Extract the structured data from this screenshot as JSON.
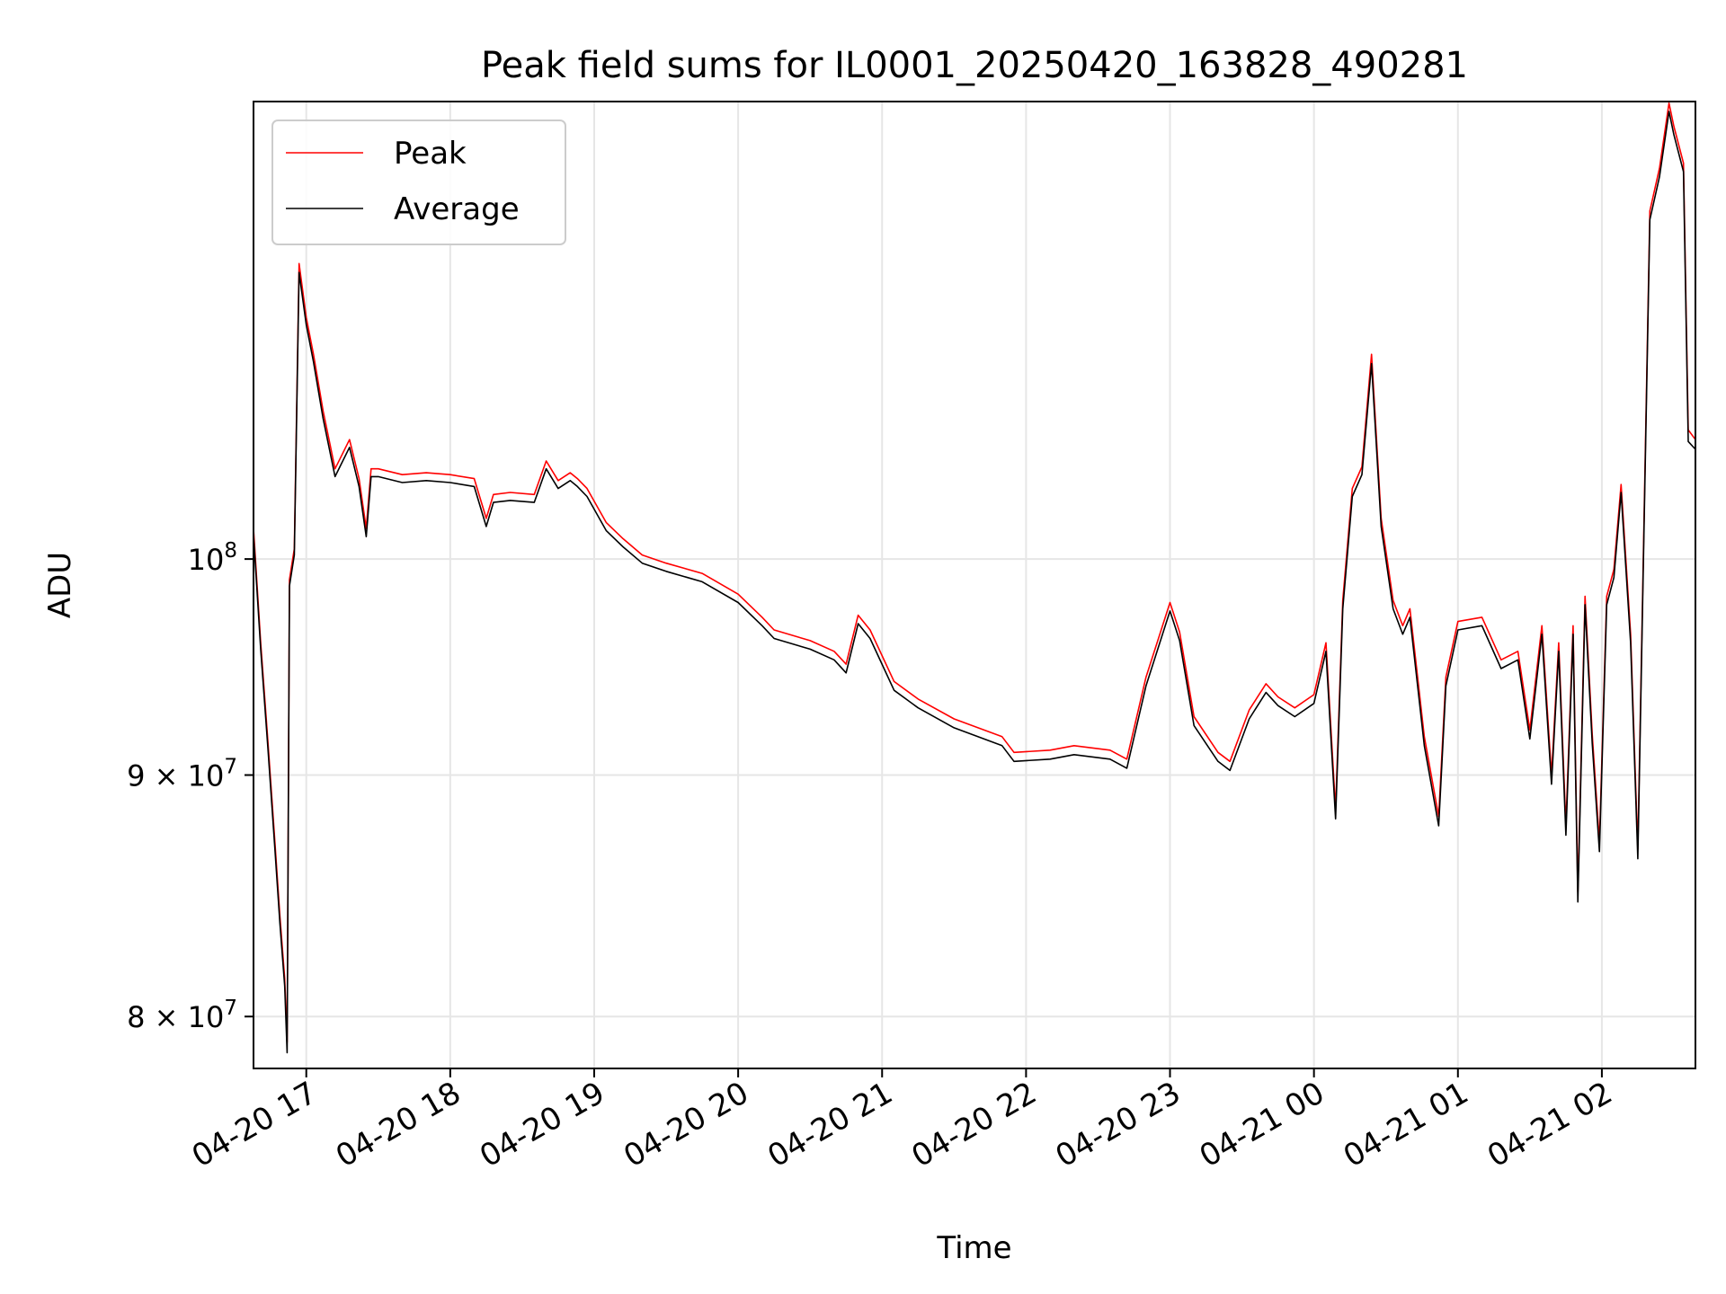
{
  "chart_data": {
    "type": "line",
    "title": "Peak field sums for IL0001_20250420_163828_490281",
    "xlabel": "Time",
    "ylabel": "ADU",
    "yscale": "log",
    "grid": true,
    "legend_placement": "top-left",
    "xlim": [
      "2025-04-20 16:38",
      "2025-04-21 02:39"
    ],
    "ylim": [
      78000000,
      125000000
    ],
    "x_ticks": [
      {
        "value": "2025-04-20 17:00",
        "label": "04-20 17"
      },
      {
        "value": "2025-04-20 18:00",
        "label": "04-20 18"
      },
      {
        "value": "2025-04-20 19:00",
        "label": "04-20 19"
      },
      {
        "value": "2025-04-20 20:00",
        "label": "04-20 20"
      },
      {
        "value": "2025-04-20 21:00",
        "label": "04-20 21"
      },
      {
        "value": "2025-04-20 22:00",
        "label": "04-20 22"
      },
      {
        "value": "2025-04-20 23:00",
        "label": "04-20 23"
      },
      {
        "value": "2025-04-21 00:00",
        "label": "04-21 00"
      },
      {
        "value": "2025-04-21 01:00",
        "label": "04-21 01"
      },
      {
        "value": "2025-04-21 02:00",
        "label": "04-21 02"
      }
    ],
    "y_ticks": [
      {
        "value": 80000000,
        "mantissa": "8",
        "base": "10",
        "exp": "7"
      },
      {
        "value": 90000000,
        "mantissa": "9",
        "base": "10",
        "exp": "7"
      },
      {
        "value": 100000000,
        "mantissa": "",
        "base": "10",
        "exp": "8"
      }
    ],
    "series": [
      {
        "name": "Peak",
        "color": "#ff0000",
        "x": [
          "2025-04-20 16:38",
          "2025-04-20 16:41",
          "2025-04-20 16:44",
          "2025-04-20 16:47",
          "2025-04-20 16:49",
          "2025-04-20 16:51",
          "2025-04-20 16:52",
          "2025-04-20 16:53",
          "2025-04-20 16:55",
          "2025-04-20 16:57",
          "2025-04-20 17:00",
          "2025-04-20 17:03",
          "2025-04-20 17:07",
          "2025-04-20 17:12",
          "2025-04-20 17:18",
          "2025-04-20 17:22",
          "2025-04-20 17:25",
          "2025-04-20 17:27",
          "2025-04-20 17:30",
          "2025-04-20 17:40",
          "2025-04-20 17:50",
          "2025-04-20 18:00",
          "2025-04-20 18:10",
          "2025-04-20 18:15",
          "2025-04-20 18:18",
          "2025-04-20 18:25",
          "2025-04-20 18:35",
          "2025-04-20 18:40",
          "2025-04-20 18:45",
          "2025-04-20 18:50",
          "2025-04-20 18:53",
          "2025-04-20 18:57",
          "2025-04-20 19:05",
          "2025-04-20 19:12",
          "2025-04-20 19:20",
          "2025-04-20 19:30",
          "2025-04-20 19:45",
          "2025-04-20 20:00",
          "2025-04-20 20:10",
          "2025-04-20 20:15",
          "2025-04-20 20:30",
          "2025-04-20 20:40",
          "2025-04-20 20:45",
          "2025-04-20 20:50",
          "2025-04-20 20:55",
          "2025-04-20 21:05",
          "2025-04-20 21:15",
          "2025-04-20 21:30",
          "2025-04-20 21:50",
          "2025-04-20 21:55",
          "2025-04-20 22:10",
          "2025-04-20 22:20",
          "2025-04-20 22:35",
          "2025-04-20 22:42",
          "2025-04-20 22:50",
          "2025-04-20 23:00",
          "2025-04-20 23:04",
          "2025-04-20 23:10",
          "2025-04-20 23:20",
          "2025-04-20 23:25",
          "2025-04-20 23:33",
          "2025-04-20 23:40",
          "2025-04-20 23:45",
          "2025-04-20 23:52",
          "2025-04-21 00:00",
          "2025-04-21 00:05",
          "2025-04-21 00:09",
          "2025-04-21 00:12",
          "2025-04-21 00:16",
          "2025-04-21 00:20",
          "2025-04-21 00:24",
          "2025-04-21 00:28",
          "2025-04-21 00:33",
          "2025-04-21 00:37",
          "2025-04-21 00:40",
          "2025-04-21 00:46",
          "2025-04-21 00:52",
          "2025-04-21 00:55",
          "2025-04-21 01:00",
          "2025-04-21 01:10",
          "2025-04-21 01:18",
          "2025-04-21 01:25",
          "2025-04-21 01:30",
          "2025-04-21 01:35",
          "2025-04-21 01:39",
          "2025-04-21 01:42",
          "2025-04-21 01:45",
          "2025-04-21 01:48",
          "2025-04-21 01:50",
          "2025-04-21 01:53",
          "2025-04-21 01:56",
          "2025-04-21 01:59",
          "2025-04-21 02:02",
          "2025-04-21 02:05",
          "2025-04-21 02:08",
          "2025-04-21 02:12",
          "2025-04-21 02:15",
          "2025-04-21 02:20",
          "2025-04-21 02:24",
          "2025-04-21 02:28",
          "2025-04-21 02:30",
          "2025-04-21 02:34",
          "2025-04-21 02:36",
          "2025-04-21 02:39"
        ],
        "y": [
          101500000,
          96000000,
          91500000,
          87000000,
          84000000,
          81500000,
          79000000,
          99000000,
          100500000,
          115500000,
          112500000,
          110500000,
          107500000,
          104500000,
          106000000,
          104000000,
          101500000,
          104500000,
          104500000,
          104200000,
          104300000,
          104200000,
          104000000,
          102000000,
          103200000,
          103300000,
          103200000,
          104900000,
          103900000,
          104300000,
          104000000,
          103500000,
          101800000,
          101000000,
          100200000,
          99800000,
          99300000,
          98300000,
          97200000,
          96600000,
          96100000,
          95600000,
          95000000,
          97300000,
          96600000,
          94200000,
          93400000,
          92500000,
          91700000,
          91000000,
          91100000,
          91300000,
          91100000,
          90700000,
          94400000,
          97900000,
          96500000,
          92600000,
          91000000,
          90600000,
          92900000,
          94100000,
          93500000,
          93000000,
          93600000,
          96000000,
          88500000,
          98000000,
          103500000,
          104600000,
          110500000,
          102000000,
          98000000,
          96800000,
          97600000,
          91700000,
          88200000,
          94400000,
          97000000,
          97200000,
          95200000,
          95600000,
          92000000,
          96800000,
          90000000,
          96000000,
          87800000,
          96800000,
          85000000,
          98200000,
          91800000,
          87100000,
          98200000,
          99500000,
          103700000,
          96400000,
          86800000,
          118500000,
          121000000,
          124900000,
          123500000,
          121300000,
          106500000,
          106000000
        ],
        "y2": null
      },
      {
        "name": "Average",
        "color": "#000000",
        "x": [
          "2025-04-20 16:38",
          "2025-04-20 16:41",
          "2025-04-20 16:44",
          "2025-04-20 16:47",
          "2025-04-20 16:49",
          "2025-04-20 16:51",
          "2025-04-20 16:52",
          "2025-04-20 16:53",
          "2025-04-20 16:55",
          "2025-04-20 16:57",
          "2025-04-20 17:00",
          "2025-04-20 17:03",
          "2025-04-20 17:07",
          "2025-04-20 17:12",
          "2025-04-20 17:18",
          "2025-04-20 17:22",
          "2025-04-20 17:25",
          "2025-04-20 17:27",
          "2025-04-20 17:30",
          "2025-04-20 17:40",
          "2025-04-20 17:50",
          "2025-04-20 18:00",
          "2025-04-20 18:10",
          "2025-04-20 18:15",
          "2025-04-20 18:18",
          "2025-04-20 18:25",
          "2025-04-20 18:35",
          "2025-04-20 18:40",
          "2025-04-20 18:45",
          "2025-04-20 18:50",
          "2025-04-20 18:53",
          "2025-04-20 18:57",
          "2025-04-20 19:05",
          "2025-04-20 19:12",
          "2025-04-20 19:20",
          "2025-04-20 19:30",
          "2025-04-20 19:45",
          "2025-04-20 20:00",
          "2025-04-20 20:10",
          "2025-04-20 20:15",
          "2025-04-20 20:30",
          "2025-04-20 20:40",
          "2025-04-20 20:45",
          "2025-04-20 20:50",
          "2025-04-20 20:55",
          "2025-04-20 21:05",
          "2025-04-20 21:15",
          "2025-04-20 21:30",
          "2025-04-20 21:50",
          "2025-04-20 21:55",
          "2025-04-20 22:10",
          "2025-04-20 22:20",
          "2025-04-20 22:35",
          "2025-04-20 22:42",
          "2025-04-20 22:50",
          "2025-04-20 23:00",
          "2025-04-20 23:04",
          "2025-04-20 23:10",
          "2025-04-20 23:20",
          "2025-04-20 23:25",
          "2025-04-20 23:33",
          "2025-04-20 23:40",
          "2025-04-20 23:45",
          "2025-04-20 23:52",
          "2025-04-21 00:00",
          "2025-04-21 00:05",
          "2025-04-21 00:09",
          "2025-04-21 00:12",
          "2025-04-21 00:16",
          "2025-04-21 00:20",
          "2025-04-21 00:24",
          "2025-04-21 00:28",
          "2025-04-21 00:33",
          "2025-04-21 00:37",
          "2025-04-21 00:40",
          "2025-04-21 00:46",
          "2025-04-21 00:52",
          "2025-04-21 00:55",
          "2025-04-21 01:00",
          "2025-04-21 01:10",
          "2025-04-21 01:18",
          "2025-04-21 01:25",
          "2025-04-21 01:30",
          "2025-04-21 01:35",
          "2025-04-21 01:39",
          "2025-04-21 01:42",
          "2025-04-21 01:45",
          "2025-04-21 01:48",
          "2025-04-21 01:50",
          "2025-04-21 01:53",
          "2025-04-21 01:56",
          "2025-04-21 01:59",
          "2025-04-21 02:02",
          "2025-04-21 02:05",
          "2025-04-21 02:08",
          "2025-04-21 02:12",
          "2025-04-21 02:15",
          "2025-04-21 02:20",
          "2025-04-21 02:24",
          "2025-04-21 02:28",
          "2025-04-21 02:30",
          "2025-04-21 02:34",
          "2025-04-21 02:36",
          "2025-04-21 02:39"
        ],
        "y": [
          101200000,
          95700000,
          91200000,
          86700000,
          83700000,
          81200000,
          78600000,
          98700000,
          100200000,
          115000000,
          112100000,
          110100000,
          107100000,
          104100000,
          105600000,
          103600000,
          101100000,
          104100000,
          104100000,
          103800000,
          103900000,
          103800000,
          103600000,
          101600000,
          102800000,
          102900000,
          102800000,
          104500000,
          103500000,
          103900000,
          103600000,
          103100000,
          101400000,
          100600000,
          99800000,
          99400000,
          98900000,
          97900000,
          96800000,
          96200000,
          95700000,
          95200000,
          94600000,
          96900000,
          96200000,
          93800000,
          93000000,
          92100000,
          91300000,
          90600000,
          90700000,
          90900000,
          90700000,
          90300000,
          94000000,
          97500000,
          96100000,
          92200000,
          90600000,
          90200000,
          92500000,
          93700000,
          93100000,
          92600000,
          93200000,
          95600000,
          88100000,
          97600000,
          103100000,
          104200000,
          110000000,
          101600000,
          97600000,
          96400000,
          97200000,
          91300000,
          87800000,
          94000000,
          96600000,
          96800000,
          94800000,
          95200000,
          91600000,
          96400000,
          89600000,
          95600000,
          87400000,
          96400000,
          84600000,
          97800000,
          91400000,
          86700000,
          97800000,
          99100000,
          103300000,
          96000000,
          86400000,
          118000000,
          120500000,
          124400000,
          123000000,
          120800000,
          105900000,
          105500000
        ]
      }
    ]
  }
}
